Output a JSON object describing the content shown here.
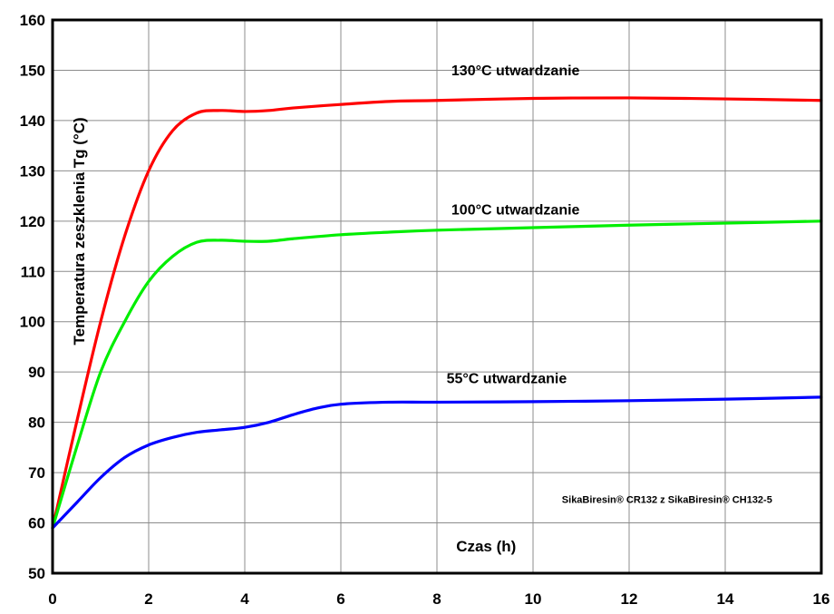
{
  "chart_data": {
    "type": "line",
    "xlabel": "Czas (h)",
    "ylabel": "Temperatura zeszklenia Tg (°C)",
    "xlim": [
      0,
      16
    ],
    "ylim": [
      50,
      160
    ],
    "xticks": [
      0,
      2,
      4,
      6,
      8,
      10,
      12,
      14,
      16
    ],
    "yticks": [
      50,
      60,
      70,
      80,
      90,
      100,
      110,
      120,
      130,
      140,
      150,
      160
    ],
    "grid": true,
    "annotation": "SikaBiresin® CR132 z SikaBiresin® CH132-5",
    "series": [
      {
        "name": "130°C utwardzanie",
        "color": "#ff0000",
        "x": [
          0,
          0.5,
          1,
          1.5,
          2,
          2.5,
          3,
          3.5,
          4,
          4.5,
          5,
          6,
          7,
          8,
          10,
          12,
          14,
          16
        ],
        "y": [
          59,
          80,
          100,
          117,
          130,
          138,
          141.5,
          142,
          141.8,
          142,
          142.5,
          143.2,
          143.8,
          144,
          144.4,
          144.5,
          144.3,
          144
        ]
      },
      {
        "name": "100°C utwardzanie",
        "color": "#00ee00",
        "x": [
          0,
          0.5,
          1,
          1.5,
          2,
          2.5,
          3,
          3.5,
          4,
          4.5,
          5,
          6,
          7,
          8,
          10,
          12,
          14,
          16
        ],
        "y": [
          59,
          75,
          90,
          100,
          108,
          113,
          115.8,
          116.2,
          116,
          116,
          116.5,
          117.3,
          117.8,
          118.2,
          118.7,
          119.2,
          119.6,
          120
        ]
      },
      {
        "name": "55°C utwardzanie",
        "color": "#0000ff",
        "x": [
          0,
          0.5,
          1,
          1.5,
          2,
          2.5,
          3,
          3.5,
          4,
          4.5,
          5,
          5.5,
          6,
          7,
          8,
          10,
          12,
          14,
          16
        ],
        "y": [
          59,
          64,
          69,
          73,
          75.5,
          77,
          78,
          78.5,
          79,
          80,
          81.5,
          82.8,
          83.6,
          84,
          84,
          84.1,
          84.3,
          84.6,
          85
        ]
      }
    ],
    "series_label_anchor": [
      {
        "x": 8.3,
        "y": 149
      },
      {
        "x": 8.3,
        "y": 121.3
      },
      {
        "x": 8.2,
        "y": 87.8
      }
    ]
  }
}
